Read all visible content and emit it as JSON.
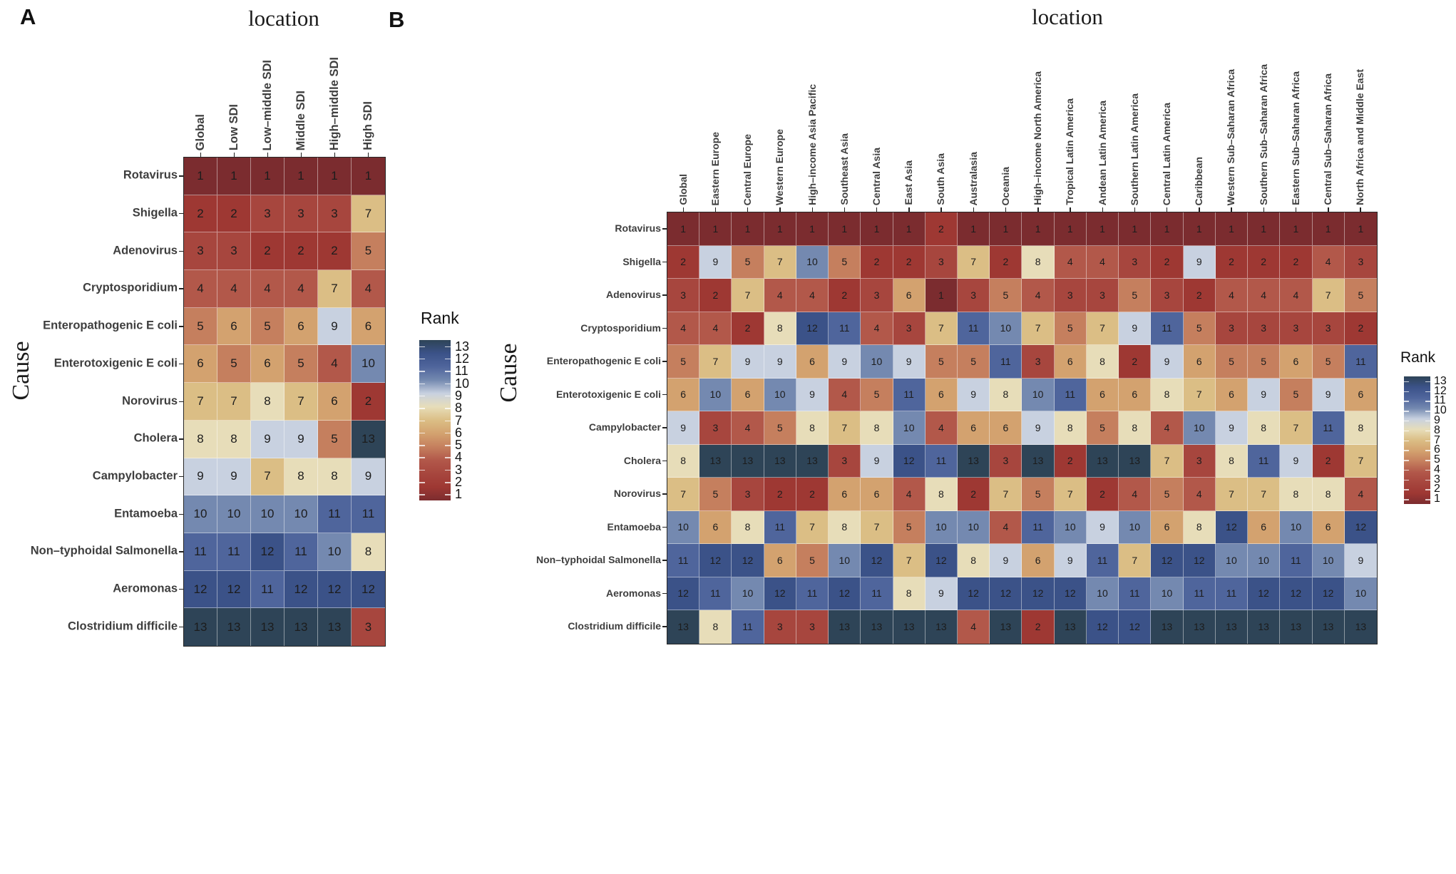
{
  "figure": {
    "background": "#ffffff",
    "panel_a_label": "A",
    "panel_b_label": "B"
  },
  "colors": {
    "rank_palette": [
      "#7B2C2F",
      "#9E3833",
      "#A7463E",
      "#B2584A",
      "#C57F5E",
      "#D3A26F",
      "#DBBE85",
      "#E7DDB9",
      "#C8D1E0",
      "#7489B0",
      "#4F659C",
      "#3B5288",
      "#2E4457"
    ],
    "cell_text": "#1c1c1c",
    "axis_label_text": "#3e3e3e",
    "panel_border": "#262626"
  },
  "chart_data": [
    {
      "type": "heatmap",
      "panel": "A",
      "title": "location",
      "xlabel": "location",
      "ylabel": "Cause",
      "legend_title": "Rank",
      "legend_position": "right",
      "legend_ticks": [
        13,
        12,
        11,
        10,
        9,
        8,
        7,
        6,
        5,
        4,
        3,
        2,
        1
      ],
      "value_range": [
        1,
        13
      ],
      "columns": [
        "Global",
        "Low SDI",
        "Low–middle SDI",
        "Middle SDI",
        "High–middle SDI",
        "High SDI"
      ],
      "rows": [
        "Rotavirus",
        "Shigella",
        "Adenovirus",
        "Cryptosporidium",
        "Enteropathogenic E coli",
        "Enterotoxigenic E coli",
        "Norovirus",
        "Cholera",
        "Campylobacter",
        "Entamoeba",
        "Non–typhoidal Salmonella",
        "Aeromonas",
        "Clostridium difficile"
      ],
      "values": [
        [
          1,
          1,
          1,
          1,
          1,
          1
        ],
        [
          2,
          2,
          3,
          3,
          3,
          7
        ],
        [
          3,
          3,
          2,
          2,
          2,
          5
        ],
        [
          4,
          4,
          4,
          4,
          7,
          4
        ],
        [
          5,
          6,
          5,
          6,
          9,
          6
        ],
        [
          6,
          5,
          6,
          5,
          4,
          10
        ],
        [
          7,
          7,
          8,
          7,
          6,
          2
        ],
        [
          8,
          8,
          9,
          9,
          5,
          13
        ],
        [
          9,
          9,
          7,
          8,
          8,
          9
        ],
        [
          10,
          10,
          10,
          10,
          11,
          11
        ],
        [
          11,
          11,
          12,
          11,
          10,
          8
        ],
        [
          12,
          12,
          11,
          12,
          12,
          12
        ],
        [
          13,
          13,
          13,
          13,
          13,
          3
        ]
      ]
    },
    {
      "type": "heatmap",
      "panel": "B",
      "title": "location",
      "xlabel": "location",
      "ylabel": "Cause",
      "legend_title": "Rank",
      "legend_position": "right",
      "legend_ticks": [
        13,
        12,
        11,
        10,
        9,
        8,
        7,
        6,
        5,
        4,
        3,
        2,
        1
      ],
      "value_range": [
        1,
        13
      ],
      "columns": [
        "Global",
        "Eastern Europe",
        "Central Europe",
        "Western Europe",
        "High–income Asia Pacific",
        "Southeast Asia",
        "Central Asia",
        "East Asia",
        "South Asia",
        "Australasia",
        "Oceania",
        "High–income North America",
        "Tropical Latin America",
        "Andean Latin America",
        "Southern Latin America",
        "Central Latin America",
        "Caribbean",
        "Western Sub–Saharan Africa",
        "Southern Sub–Saharan Africa",
        "Eastern Sub–Saharan Africa",
        "Central Sub–Saharan Africa",
        "North Africa and Middle East"
      ],
      "rows": [
        "Rotavirus",
        "Shigella",
        "Adenovirus",
        "Cryptosporidium",
        "Enteropathogenic E coli",
        "Enterotoxigenic E coli",
        "Campylobacter",
        "Cholera",
        "Norovirus",
        "Entamoeba",
        "Non–typhoidal Salmonella",
        "Aeromonas",
        "Clostridium difficile"
      ],
      "values": [
        [
          1,
          1,
          1,
          1,
          1,
          1,
          1,
          1,
          2,
          1,
          1,
          1,
          1,
          1,
          1,
          1,
          1,
          1,
          1,
          1,
          1,
          1
        ],
        [
          2,
          9,
          5,
          7,
          10,
          5,
          2,
          2,
          3,
          7,
          2,
          8,
          4,
          4,
          3,
          2,
          9,
          2,
          2,
          2,
          4,
          3
        ],
        [
          3,
          2,
          7,
          4,
          4,
          2,
          3,
          6,
          1,
          3,
          5,
          4,
          3,
          3,
          5,
          3,
          2,
          4,
          4,
          4,
          7,
          5
        ],
        [
          4,
          4,
          2,
          8,
          12,
          11,
          4,
          3,
          7,
          11,
          10,
          7,
          5,
          7,
          9,
          11,
          5,
          3,
          3,
          3,
          3,
          2
        ],
        [
          5,
          7,
          9,
          9,
          6,
          9,
          10,
          9,
          5,
          5,
          11,
          3,
          6,
          8,
          2,
          9,
          6,
          5,
          5,
          6,
          5,
          11
        ],
        [
          6,
          10,
          6,
          10,
          9,
          4,
          5,
          11,
          6,
          9,
          8,
          10,
          11,
          6,
          6,
          8,
          7,
          6,
          9,
          5,
          9,
          6
        ],
        [
          9,
          3,
          4,
          5,
          8,
          7,
          8,
          10,
          4,
          6,
          6,
          9,
          8,
          5,
          8,
          4,
          10,
          9,
          8,
          7,
          11,
          8
        ],
        [
          8,
          13,
          13,
          13,
          13,
          3,
          9,
          12,
          11,
          13,
          3,
          13,
          2,
          13,
          13,
          7,
          3,
          8,
          11,
          9,
          2,
          7
        ],
        [
          7,
          5,
          3,
          2,
          2,
          6,
          6,
          4,
          8,
          2,
          7,
          5,
          7,
          2,
          4,
          5,
          4,
          7,
          7,
          8,
          8,
          4
        ],
        [
          10,
          6,
          8,
          11,
          7,
          8,
          7,
          5,
          10,
          10,
          4,
          11,
          10,
          9,
          10,
          6,
          8,
          12,
          6,
          10,
          6,
          12
        ],
        [
          11,
          12,
          12,
          6,
          5,
          10,
          12,
          7,
          12,
          8,
          9,
          6,
          9,
          11,
          7,
          12,
          12,
          10,
          10,
          11,
          10,
          9
        ],
        [
          12,
          11,
          10,
          12,
          11,
          12,
          11,
          8,
          9,
          12,
          12,
          12,
          12,
          10,
          11,
          10,
          11,
          11,
          12,
          12,
          12,
          10
        ],
        [
          13,
          8,
          11,
          3,
          3,
          13,
          13,
          13,
          13,
          4,
          13,
          2,
          13,
          12,
          12,
          13,
          13,
          13,
          13,
          13,
          13,
          13
        ]
      ]
    }
  ]
}
